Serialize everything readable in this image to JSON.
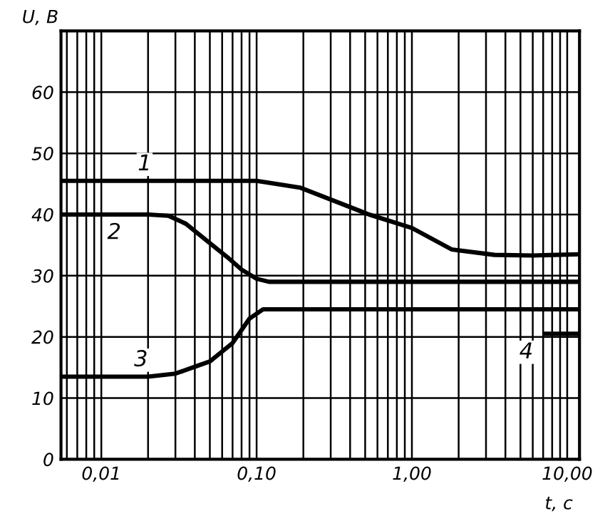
{
  "chart_data": {
    "type": "line",
    "xlabel": "t, с",
    "ylabel": "U, В",
    "log": "x",
    "xlim": [
      0.0055,
      12
    ],
    "ylim": [
      0,
      70
    ],
    "xticks": [
      {
        "value": 0.01,
        "label": "0,01"
      },
      {
        "value": 0.1,
        "label": "0,10"
      },
      {
        "value": 1,
        "label": "1,00"
      },
      {
        "value": 10,
        "label": "10,00"
      }
    ],
    "yticks": [
      0,
      10,
      20,
      30,
      40,
      50,
      60
    ],
    "grid": true,
    "line_style": "solid",
    "marker": "none",
    "series": [
      {
        "color": "#000000",
        "x": [
          0.0055,
          0.02,
          0.1,
          0.19,
          0.53,
          1.0,
          1.8,
          3.4,
          6,
          12
        ],
        "values": [
          45.5,
          45.5,
          45.5,
          44.4,
          40,
          37.8,
          34.3,
          33.4,
          33.3,
          33.5
        ]
      },
      {
        "color": "#000000",
        "x": [
          0.0055,
          0.02,
          0.027,
          0.035,
          0.049,
          0.065,
          0.08,
          0.1,
          0.12,
          1,
          12
        ],
        "values": [
          40,
          40,
          39.8,
          38.5,
          35.5,
          33,
          31,
          29.5,
          29,
          29,
          29
        ]
      },
      {
        "color": "#000000",
        "x": [
          0.0055,
          0.02,
          0.03,
          0.05,
          0.07,
          0.09,
          0.11,
          0.13,
          1,
          12
        ],
        "values": [
          13.5,
          13.5,
          14,
          16,
          19,
          23,
          24.5,
          24.5,
          24.5,
          24.5
        ]
      },
      {
        "color": "#000000",
        "x": [
          7.2,
          12
        ],
        "values": [
          20.5,
          20.5
        ]
      }
    ],
    "annotations": [
      {
        "text": "1",
        "x": 0.019,
        "y": 45.5
      },
      {
        "text": "2",
        "x": 0.016,
        "y": 40
      },
      {
        "text": "3",
        "x": 0.018,
        "y": 13.5
      },
      {
        "text": "4",
        "x": 7.2,
        "y": 20.5
      }
    ]
  }
}
